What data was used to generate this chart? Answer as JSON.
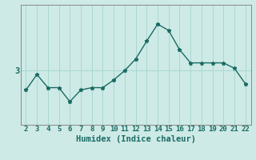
{
  "x": [
    2,
    3,
    4,
    5,
    6,
    7,
    8,
    9,
    10,
    11,
    12,
    13,
    14,
    15,
    16,
    17,
    18,
    19,
    20,
    21,
    22
  ],
  "y": [
    2.75,
    2.95,
    2.78,
    2.78,
    2.6,
    2.75,
    2.78,
    2.78,
    2.88,
    3.0,
    3.15,
    3.38,
    3.6,
    3.52,
    3.27,
    3.1,
    3.1,
    3.1,
    3.1,
    3.03,
    2.83
  ],
  "xlabel": "Humidex (Indice chaleur)",
  "ytick_labels": [
    "3"
  ],
  "ytick_values": [
    3.0
  ],
  "bg_color": "#ceeae6",
  "line_color": "#1a6b64",
  "grid_color": "#a8d8d2",
  "axis_color": "#888888",
  "xlim": [
    1.5,
    22.5
  ],
  "ylim": [
    2.3,
    3.85
  ],
  "xticks": [
    2,
    3,
    4,
    5,
    6,
    7,
    8,
    9,
    10,
    11,
    12,
    13,
    14,
    15,
    16,
    17,
    18,
    19,
    20,
    21,
    22
  ],
  "marker": "*",
  "markersize": 3.5,
  "linewidth": 1.0,
  "xlabel_fontsize": 7.5,
  "tick_fontsize": 6.5
}
